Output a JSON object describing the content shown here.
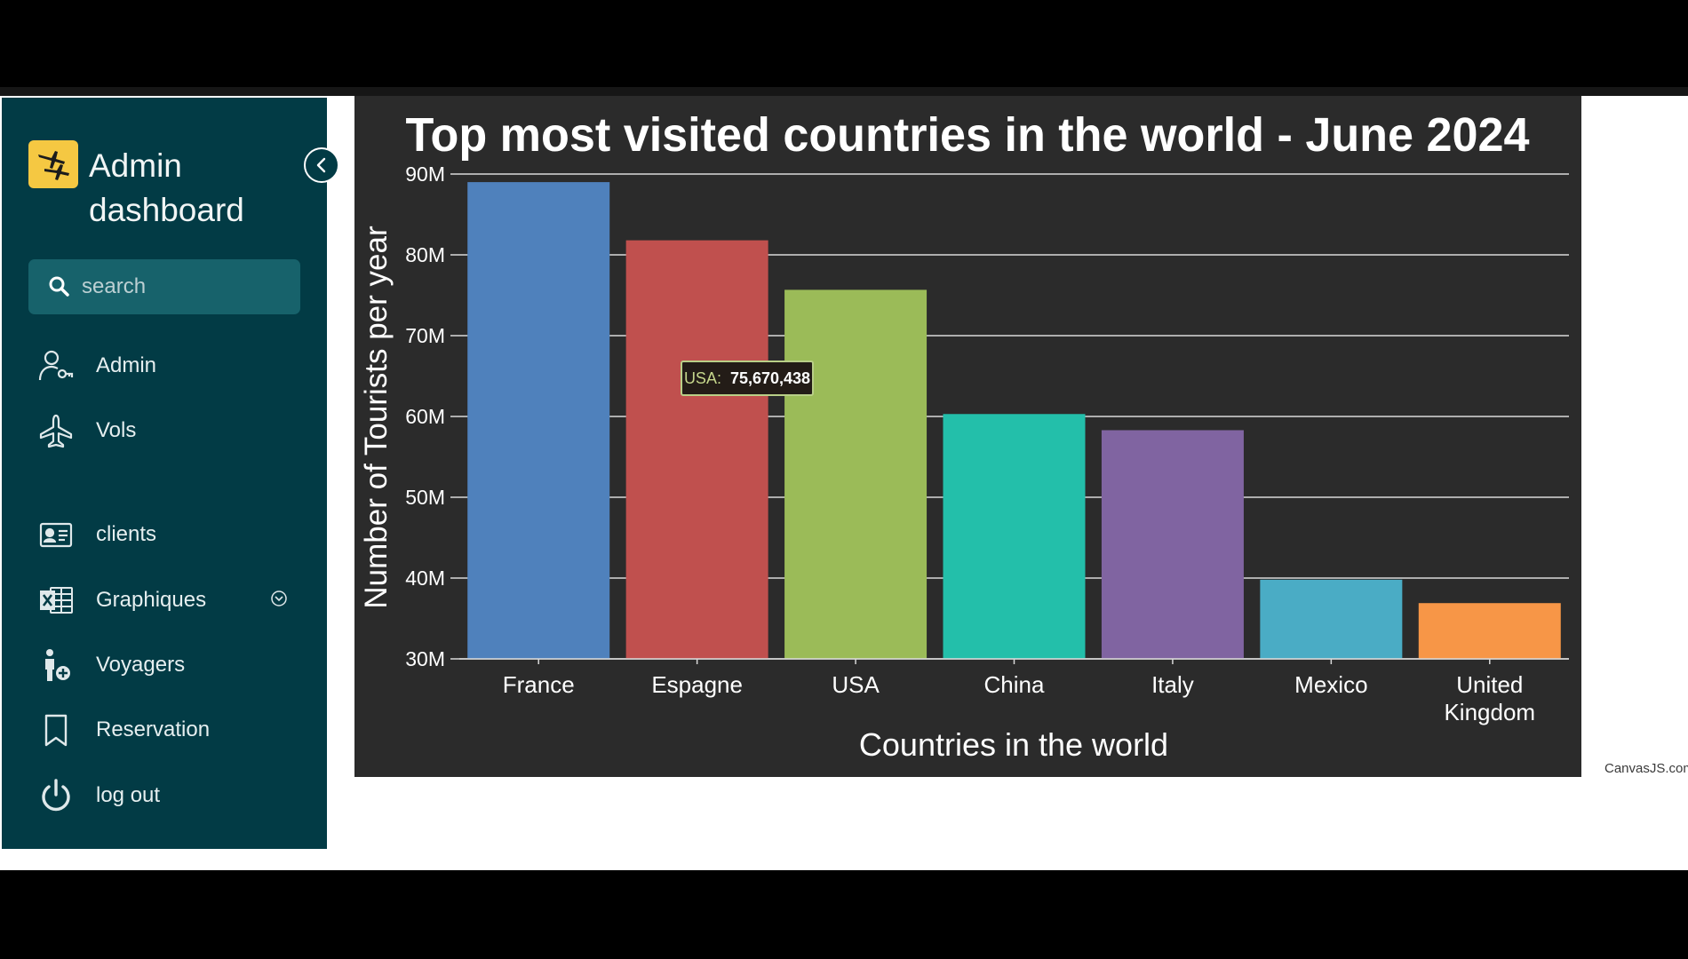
{
  "sidebar": {
    "brand_title": "Admin dashboard",
    "search": {
      "placeholder": "search",
      "value": ""
    },
    "items": [
      {
        "label": "Admin",
        "icon": "user-key-icon"
      },
      {
        "label": "Vols",
        "icon": "airplane-icon"
      },
      {
        "label": "clients",
        "icon": "contact-card-icon"
      },
      {
        "label": "Graphiques",
        "icon": "excel-icon",
        "has_dropdown": true
      },
      {
        "label": "Voyagers",
        "icon": "person-add-icon"
      },
      {
        "label": "Reservation",
        "icon": "bookmark-icon"
      },
      {
        "label": "log out",
        "icon": "power-icon"
      }
    ]
  },
  "chart_data": {
    "type": "bar",
    "title": "Top most visited countries in the world - June 2024",
    "xlabel": "Countries in the world",
    "ylabel": "Number of Tourists per year",
    "categories": [
      "France",
      "Espagne",
      "USA",
      "China",
      "Italy",
      "Mexico",
      "United Kingdom"
    ],
    "values": [
      89000000,
      81800000,
      75670438,
      60300000,
      58300000,
      39800000,
      36900000
    ],
    "ylim": [
      30000000,
      90000000
    ],
    "yticks": [
      30000000,
      40000000,
      50000000,
      60000000,
      70000000,
      80000000,
      90000000
    ],
    "ytick_labels": [
      "30M",
      "40M",
      "50M",
      "60M",
      "70M",
      "80M",
      "90M"
    ],
    "colors": [
      "#4f81bc",
      "#c0504e",
      "#9bbb58",
      "#23bfaa",
      "#8064a1",
      "#4aacc5",
      "#f79647"
    ],
    "grid": true,
    "tooltip": {
      "label": "USA:",
      "value": "75,670,438"
    },
    "credit": "CanvasJS.com"
  }
}
